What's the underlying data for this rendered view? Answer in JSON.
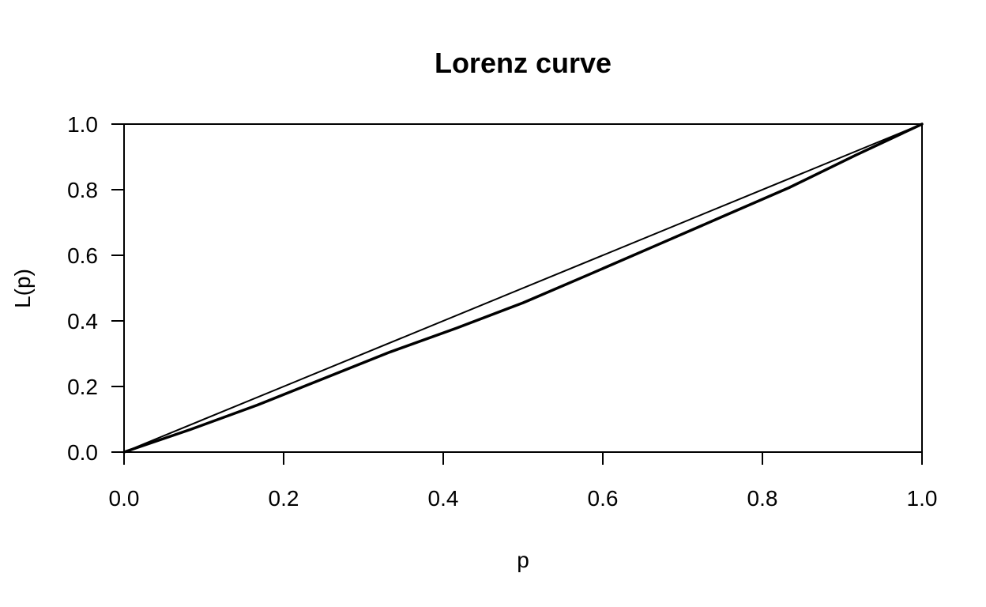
{
  "chart_data": {
    "type": "line",
    "title": "Lorenz curve",
    "xlabel": "p",
    "ylabel": "L(p)",
    "xlim": [
      0,
      1
    ],
    "ylim": [
      0,
      1
    ],
    "x_ticks": [
      "0.0",
      "0.2",
      "0.4",
      "0.6",
      "0.8",
      "1.0"
    ],
    "y_ticks": [
      "0.0",
      "0.2",
      "0.4",
      "0.6",
      "0.8",
      "1.0"
    ],
    "grid": false,
    "legend": "none",
    "colors": {
      "line": "#000000",
      "background": "#ffffff"
    },
    "series": [
      {
        "role": "line-of-equality",
        "x": [
          0,
          1
        ],
        "y": [
          0,
          1
        ]
      },
      {
        "role": "lorenz-curve",
        "x": [
          0,
          0.0833,
          0.1667,
          0.25,
          0.3333,
          0.4167,
          0.5,
          0.5833,
          0.6667,
          0.75,
          0.8333,
          0.9167,
          1.0
        ],
        "y": [
          0,
          0.069,
          0.143,
          0.224,
          0.305,
          0.378,
          0.455,
          0.542,
          0.63,
          0.718,
          0.806,
          0.905,
          1.0
        ]
      }
    ]
  }
}
